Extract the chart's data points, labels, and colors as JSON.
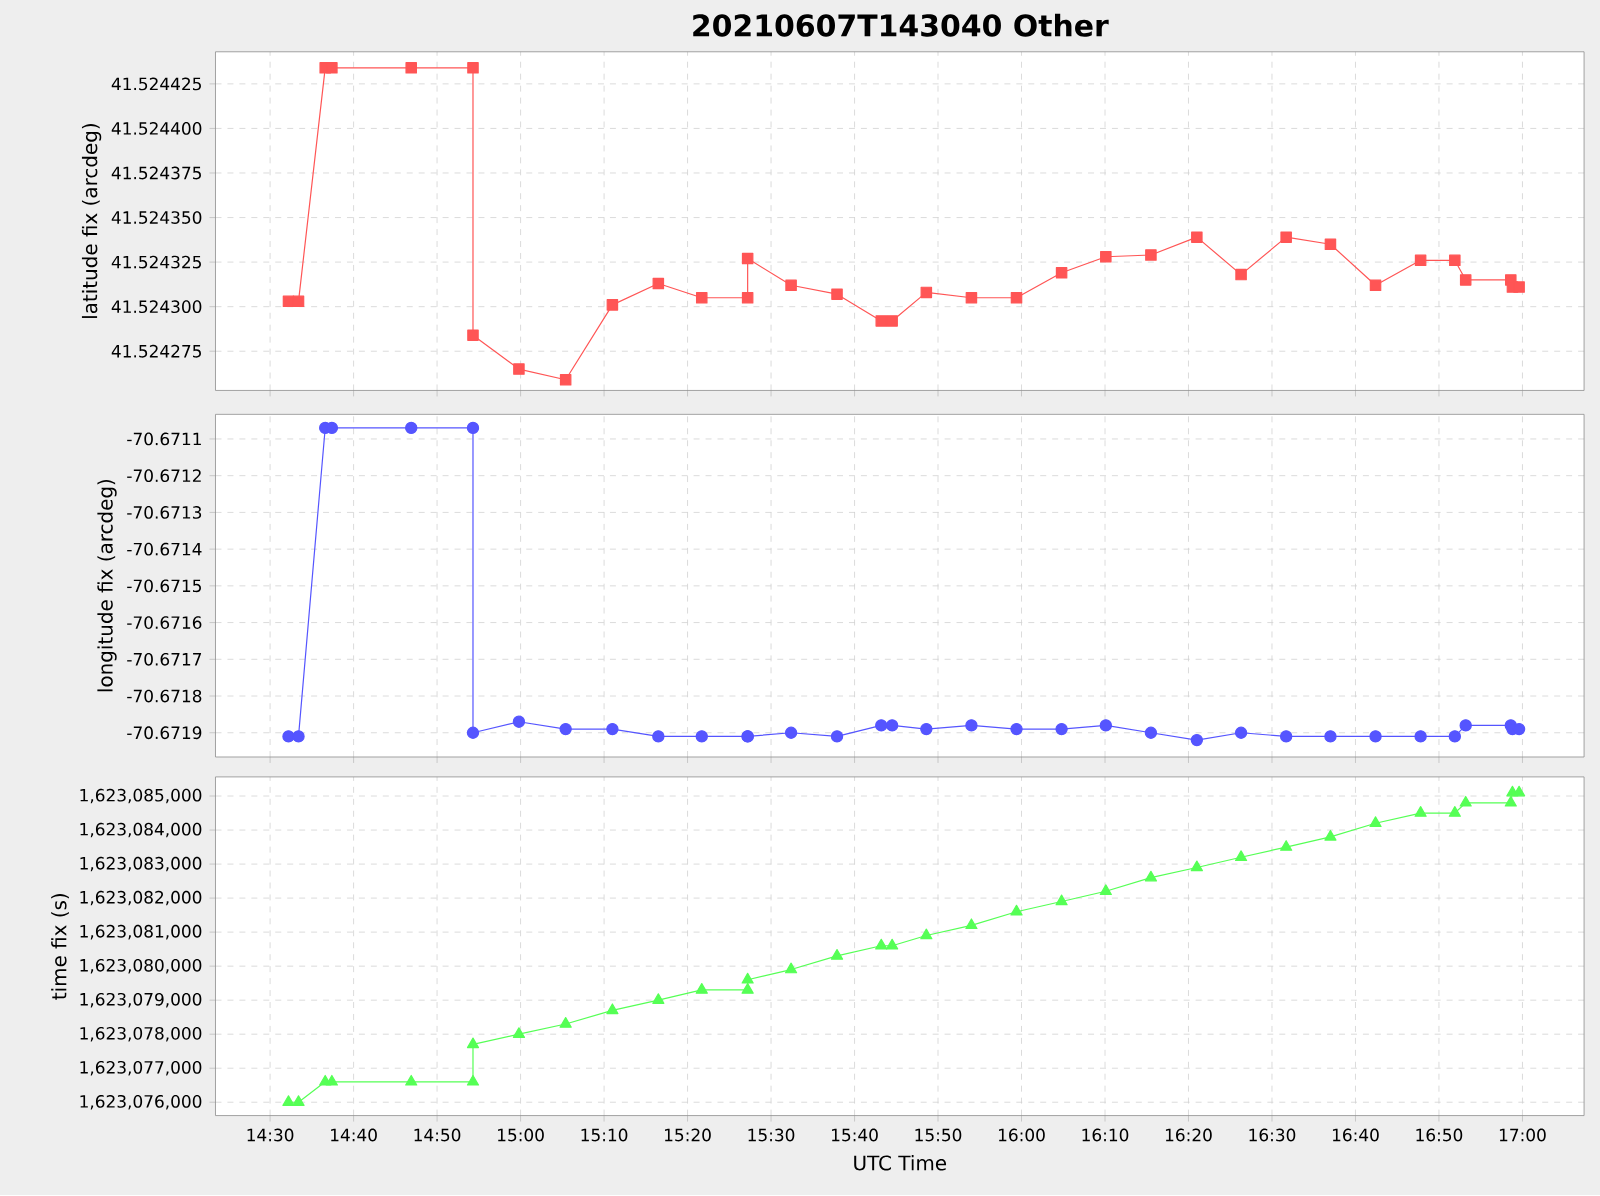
{
  "chart_data": [
    {
      "type": "line",
      "title": "20210607T143040 Other",
      "ylabel": "latitude fix (arcdeg)",
      "color": "#ff5555",
      "marker": "square",
      "grid": true,
      "tick_labels": "y",
      "x": [
        14.5367,
        14.5567,
        14.61,
        14.6233,
        14.7817,
        14.905,
        14.905,
        14.9967,
        15.09,
        15.1833,
        15.275,
        15.3617,
        15.4533,
        15.4533,
        15.54,
        15.6317,
        15.72,
        15.7417,
        15.81,
        15.9,
        15.99,
        16.08,
        16.1683,
        16.2583,
        16.35,
        16.4383,
        16.5283,
        16.6167,
        16.7067,
        16.7967,
        16.865,
        16.8867,
        16.9767,
        16.98,
        16.9933
      ],
      "values": [
        41.524303,
        41.524303,
        41.524434,
        41.524434,
        41.524434,
        41.524434,
        41.524284,
        41.524265,
        41.524259,
        41.524301,
        41.524313,
        41.524305,
        41.524305,
        41.524327,
        41.524312,
        41.524307,
        41.524292,
        41.524292,
        41.524308,
        41.524305,
        41.524305,
        41.524319,
        41.524328,
        41.524329,
        41.524339,
        41.524318,
        41.524339,
        41.524335,
        41.524312,
        41.524326,
        41.524326,
        41.524315,
        41.524315,
        41.524311,
        41.524311
      ],
      "xlim": [
        14.391,
        17.123
      ],
      "xticks": [
        14.5,
        14.6667,
        14.8333,
        15,
        15.1667,
        15.3333,
        15.5,
        15.6667,
        15.8333,
        16,
        16.1667,
        16.3333,
        16.5,
        16.6667,
        16.8333,
        17
      ],
      "ylim": [
        41.524253,
        41.524443
      ],
      "yticks": [
        {
          "value": 41.524275,
          "label": "41.524275"
        },
        {
          "value": 41.5243,
          "label": "41.524300"
        },
        {
          "value": 41.524325,
          "label": "41.524325"
        },
        {
          "value": 41.52435,
          "label": "41.524350"
        },
        {
          "value": 41.524375,
          "label": "41.524375"
        },
        {
          "value": 41.5244,
          "label": "41.524400"
        },
        {
          "value": 41.524425,
          "label": "41.524425"
        }
      ]
    },
    {
      "type": "line",
      "ylabel": "longitude fix (arcdeg)",
      "color": "#5555ff",
      "marker": "circle",
      "grid": true,
      "tick_labels": "y",
      "x": [
        14.5367,
        14.5567,
        14.61,
        14.6233,
        14.7817,
        14.905,
        14.905,
        14.9967,
        15.09,
        15.1833,
        15.275,
        15.3617,
        15.4533,
        15.4533,
        15.54,
        15.6317,
        15.72,
        15.7417,
        15.81,
        15.9,
        15.99,
        16.08,
        16.1683,
        16.2583,
        16.35,
        16.4383,
        16.5283,
        16.6167,
        16.7067,
        16.7967,
        16.865,
        16.8867,
        16.9767,
        16.98,
        16.9933
      ],
      "values": [
        -70.67191,
        -70.67191,
        -70.67107,
        -70.67107,
        -70.67107,
        -70.67107,
        -70.6719,
        -70.67187,
        -70.67189,
        -70.67189,
        -70.67191,
        -70.67191,
        -70.67191,
        -70.67191,
        -70.6719,
        -70.67191,
        -70.67188,
        -70.67188,
        -70.67189,
        -70.67188,
        -70.67189,
        -70.67189,
        -70.67188,
        -70.6719,
        -70.67192,
        -70.6719,
        -70.67191,
        -70.67191,
        -70.67191,
        -70.67191,
        -70.67191,
        -70.67188,
        -70.67188,
        -70.67189,
        -70.67189
      ],
      "xlim": [
        14.391,
        17.123
      ],
      "xticks": [
        14.5,
        14.6667,
        14.8333,
        15,
        15.1667,
        15.3333,
        15.5,
        15.6667,
        15.8333,
        16,
        16.1667,
        16.3333,
        16.5,
        16.6667,
        16.8333,
        17
      ],
      "ylim": [
        -70.671966,
        -70.671033
      ],
      "yticks": [
        -70.6719,
        -70.6718,
        -70.6717,
        -70.6716,
        -70.6715,
        -70.6714,
        -70.6713,
        -70.6712,
        -70.6711
      ]
    },
    {
      "type": "line",
      "xlabel": "UTC Time",
      "ylabel": "time fix (s)",
      "color": "#55ff55",
      "marker": "triangle",
      "grid": true,
      "x": [
        14.5367,
        14.5567,
        14.61,
        14.6233,
        14.7817,
        14.905,
        14.905,
        14.9967,
        15.09,
        15.1833,
        15.275,
        15.3617,
        15.4533,
        15.4533,
        15.54,
        15.6317,
        15.72,
        15.7417,
        15.81,
        15.9,
        15.99,
        16.08,
        16.1683,
        16.2583,
        16.35,
        16.4383,
        16.5283,
        16.6167,
        16.7067,
        16.7967,
        16.865,
        16.8867,
        16.9767,
        16.98,
        16.9933
      ],
      "values": [
        1623076000,
        1623076000,
        1623076600,
        1623076600,
        1623076600,
        1623076600,
        1623077700,
        1623078000,
        1623078300,
        1623078700,
        1623079000,
        1623079300,
        1623079300,
        1623079600,
        1623079900,
        1623080300,
        1623080600,
        1623080600,
        1623080900,
        1623081200,
        1623081600,
        1623081900,
        1623082200,
        1623082600,
        1623082900,
        1623083200,
        1623083500,
        1623083800,
        1623084200,
        1623084500,
        1623084500,
        1623084800,
        1623084800,
        1623085100,
        1623085100
      ],
      "xlim": [
        14.391,
        17.123
      ],
      "xticks": [
        {
          "value": 14.5,
          "label": "14:30"
        },
        {
          "value": 14.6667,
          "label": "14:40"
        },
        {
          "value": 14.8333,
          "label": "14:50"
        },
        {
          "value": 15,
          "label": "15:00"
        },
        {
          "value": 15.1667,
          "label": "15:10"
        },
        {
          "value": 15.3333,
          "label": "15:20"
        },
        {
          "value": 15.5,
          "label": "15:30"
        },
        {
          "value": 15.6667,
          "label": "15:40"
        },
        {
          "value": 15.8333,
          "label": "15:50"
        },
        {
          "value": 16,
          "label": "16:00"
        },
        {
          "value": 16.1667,
          "label": "16:10"
        },
        {
          "value": 16.3333,
          "label": "16:20"
        },
        {
          "value": 16.5,
          "label": "16:30"
        },
        {
          "value": 16.6667,
          "label": "16:40"
        },
        {
          "value": 16.8333,
          "label": "16:50"
        },
        {
          "value": 17,
          "label": "17:00"
        }
      ],
      "ylim": [
        1623075608,
        1623085562
      ],
      "yticks": [
        {
          "value": 1623076000,
          "label": "1,623,076,000"
        },
        {
          "value": 1623077000,
          "label": "1,623,077,000"
        },
        {
          "value": 1623078000,
          "label": "1,623,078,000"
        },
        {
          "value": 1623079000,
          "label": "1,623,079,000"
        },
        {
          "value": 1623080000,
          "label": "1,623,080,000"
        },
        {
          "value": 1623081000,
          "label": "1,623,081,000"
        },
        {
          "value": 1623082000,
          "label": "1,623,082,000"
        },
        {
          "value": 1623083000,
          "label": "1,623,083,000"
        },
        {
          "value": 1623084000,
          "label": "1,623,084,000"
        },
        {
          "value": 1623085000,
          "label": "1,623,085,000"
        }
      ]
    }
  ]
}
